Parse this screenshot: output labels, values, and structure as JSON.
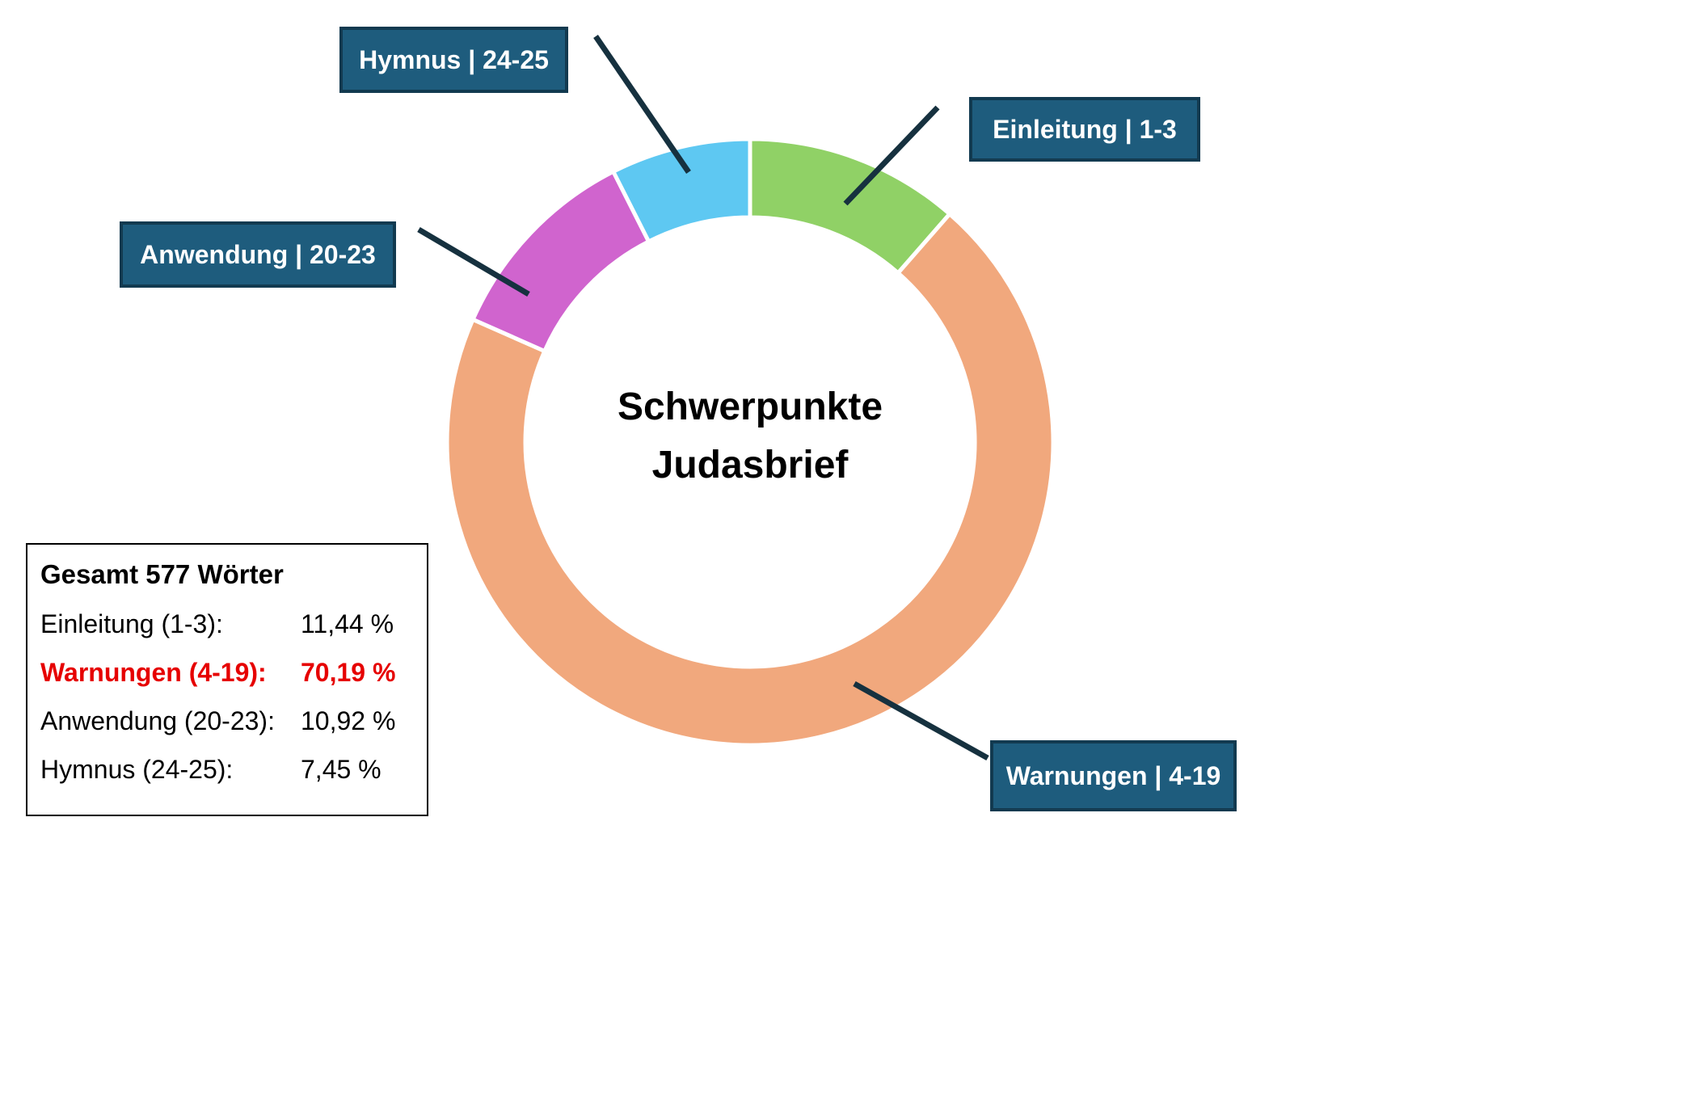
{
  "chart_data": {
    "type": "pie",
    "donut": true,
    "title": "Schwerpunkte Judasbrief",
    "center_title": [
      "Schwerpunkte",
      "Judasbrief"
    ],
    "total_label": "Gesamt 577 Wörter",
    "total_words": 577,
    "start_angle_deg_from_top": 0,
    "direction": "clockwise",
    "segments": [
      {
        "name": "Einleitung",
        "verses": "1-3",
        "callout": "Einleitung | 1-3",
        "value": 11.44,
        "display": "11,44 %",
        "color": "#90d166"
      },
      {
        "name": "Warnungen",
        "verses": "4-19",
        "callout": "Warnungen | 4-19",
        "value": 70.19,
        "display": "70,19 %",
        "color": "#f1a87d"
      },
      {
        "name": "Anwendung",
        "verses": "20-23",
        "callout": "Anwendung | 20-23",
        "value": 10.92,
        "display": "10,92 %",
        "color": "#d064ce"
      },
      {
        "name": "Hymnus",
        "verses": "24-25",
        "callout": "Hymnus | 24-25",
        "value": 7.45,
        "display": "7,45 %",
        "color": "#5ec8f2"
      }
    ],
    "legend_rows": [
      {
        "label": "Einleitung (1-3):",
        "value": "11,44 %",
        "highlight": false
      },
      {
        "label": "Warnungen (4-19):",
        "value": "70,19 %",
        "highlight": true
      },
      {
        "label": "Anwendung (20-23):",
        "value": "10,92 %",
        "highlight": false
      },
      {
        "label": "Hymnus (24-25):",
        "value": "7,45 %",
        "highlight": false
      }
    ],
    "legend_position": "bottom-left",
    "colors": {
      "callout_bg": "#1e5c7d",
      "callout_border": "#123a50",
      "leader_line": "#16313f",
      "highlight_text": "#e60000"
    }
  }
}
